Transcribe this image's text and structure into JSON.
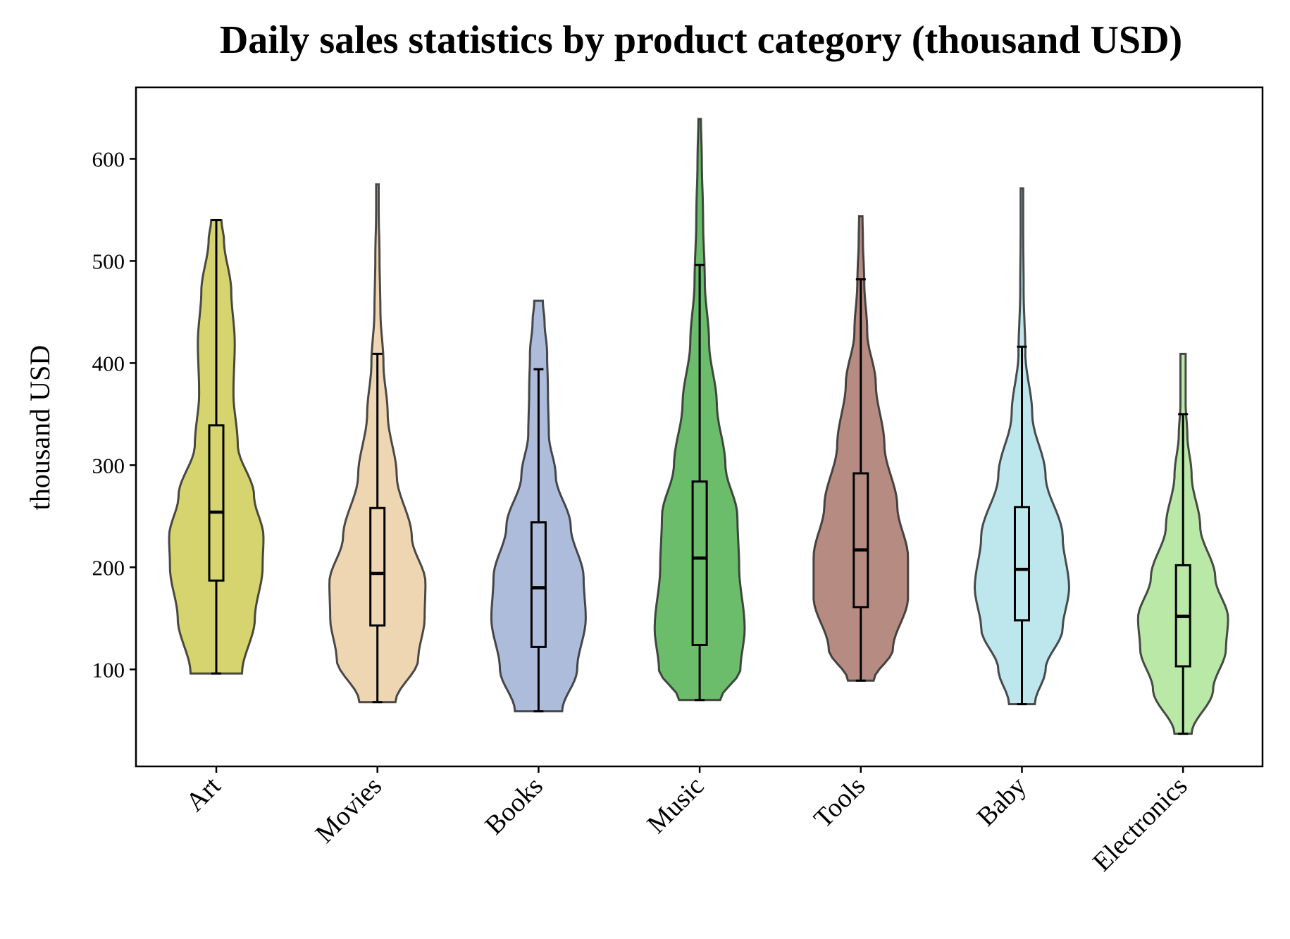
{
  "chart_data": {
    "type": "violin",
    "title": "Daily sales statistics by product category (thousand USD)",
    "xlabel": "",
    "ylabel": "thousand USD",
    "ylim": [
      5,
      670
    ],
    "yticks": [
      100,
      200,
      300,
      400,
      500,
      600
    ],
    "grid": false,
    "legend": "none",
    "categories": [
      "Art",
      "Movies",
      "Books",
      "Music",
      "Tools",
      "Baby",
      "Electronics"
    ],
    "series": [
      {
        "category": "Art",
        "color": "#c8c63e",
        "min": 96,
        "q1": 187,
        "median": 254,
        "q3": 339,
        "upper_whisker": 540,
        "max": 540,
        "density": [
          [
            96,
            60
          ],
          [
            150,
            90
          ],
          [
            200,
            108
          ],
          [
            230,
            110
          ],
          [
            270,
            88
          ],
          [
            320,
            50
          ],
          [
            370,
            40
          ],
          [
            420,
            43
          ],
          [
            470,
            35
          ],
          [
            520,
            18
          ],
          [
            540,
            12
          ]
        ]
      },
      {
        "category": "Movies",
        "color": "#e8c89a",
        "min": 68,
        "q1": 143,
        "median": 194,
        "q3": 258,
        "upper_whisker": 409,
        "max": 575,
        "density": [
          [
            68,
            42
          ],
          [
            110,
            95
          ],
          [
            150,
            110
          ],
          [
            185,
            112
          ],
          [
            230,
            80
          ],
          [
            290,
            45
          ],
          [
            350,
            24
          ],
          [
            400,
            14
          ],
          [
            450,
            7
          ],
          [
            500,
            5
          ],
          [
            550,
            3
          ],
          [
            575,
            3
          ]
        ]
      },
      {
        "category": "Books",
        "color": "#92a5cf",
        "min": 59,
        "q1": 122,
        "median": 180,
        "q3": 244,
        "upper_whisker": 394,
        "max": 461,
        "density": [
          [
            59,
            55
          ],
          [
            100,
            90
          ],
          [
            150,
            110
          ],
          [
            190,
            105
          ],
          [
            240,
            75
          ],
          [
            290,
            40
          ],
          [
            330,
            24
          ],
          [
            370,
            22
          ],
          [
            410,
            20
          ],
          [
            440,
            14
          ],
          [
            461,
            10
          ]
        ]
      },
      {
        "category": "Music",
        "color": "#3aa53a",
        "min": 70,
        "q1": 124,
        "median": 209,
        "q3": 284,
        "upper_whisker": 496,
        "max": 639,
        "density": [
          [
            70,
            48
          ],
          [
            100,
            95
          ],
          [
            140,
            105
          ],
          [
            200,
            92
          ],
          [
            250,
            88
          ],
          [
            300,
            60
          ],
          [
            360,
            40
          ],
          [
            420,
            22
          ],
          [
            480,
            12
          ],
          [
            540,
            8
          ],
          [
            600,
            5
          ],
          [
            639,
            3
          ]
        ]
      },
      {
        "category": "Tools",
        "color": "#9e6658",
        "min": 89,
        "q1": 161,
        "median": 217,
        "q3": 292,
        "upper_whisker": 482,
        "max": 544,
        "density": [
          [
            89,
            30
          ],
          [
            120,
            75
          ],
          [
            170,
            110
          ],
          [
            210,
            110
          ],
          [
            260,
            85
          ],
          [
            320,
            55
          ],
          [
            380,
            35
          ],
          [
            430,
            15
          ],
          [
            480,
            8
          ],
          [
            520,
            5
          ],
          [
            544,
            4
          ]
        ]
      },
      {
        "category": "Baby",
        "color": "#a8dde7",
        "min": 66,
        "q1": 148,
        "median": 198,
        "q3": 259,
        "upper_whisker": 416,
        "max": 571,
        "density": [
          [
            66,
            30
          ],
          [
            100,
            55
          ],
          [
            140,
            95
          ],
          [
            180,
            110
          ],
          [
            230,
            95
          ],
          [
            290,
            55
          ],
          [
            350,
            24
          ],
          [
            410,
            8
          ],
          [
            470,
            4
          ],
          [
            530,
            3
          ],
          [
            571,
            3
          ]
        ]
      },
      {
        "category": "Electronics",
        "color": "#a2e08a",
        "min": 37,
        "q1": 103,
        "median": 152,
        "q3": 202,
        "upper_whisker": 350,
        "max": 409,
        "density": [
          [
            37,
            20
          ],
          [
            80,
            70
          ],
          [
            120,
            100
          ],
          [
            150,
            105
          ],
          [
            190,
            75
          ],
          [
            240,
            40
          ],
          [
            290,
            20
          ],
          [
            330,
            10
          ],
          [
            360,
            6
          ],
          [
            400,
            6
          ],
          [
            409,
            6
          ]
        ]
      }
    ]
  }
}
